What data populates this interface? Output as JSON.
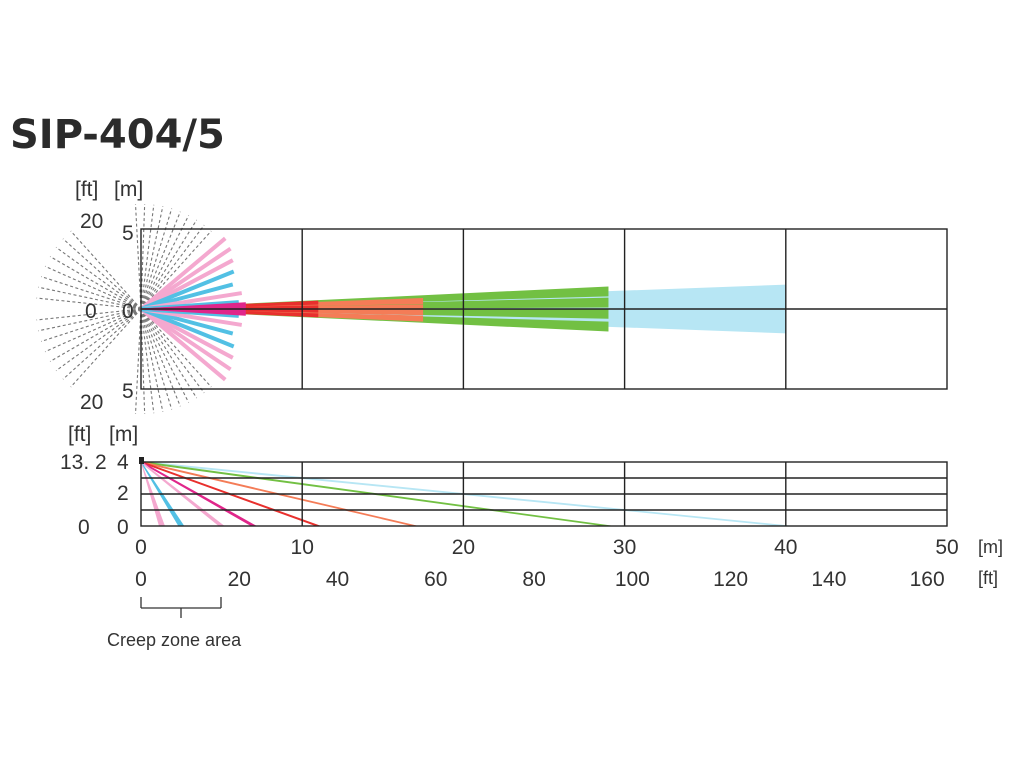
{
  "title": "SIP-404/5",
  "top_view": {
    "ft_unit": "[ft]",
    "m_unit": "[m]",
    "ft_top": "20",
    "m_top": "5",
    "ft_zero": "0",
    "m_zero": "0",
    "ft_bottom": "20",
    "m_bottom": "5"
  },
  "side_view": {
    "ft_unit": "[ft]",
    "m_unit": "[m]",
    "ft_height": "13. 2",
    "m_height": "4",
    "m_mid": "2",
    "ft_zero": "0",
    "m_zero": "0"
  },
  "x_axis_m": {
    "ticks": [
      "0",
      "10",
      "20",
      "30",
      "40",
      "50"
    ],
    "unit": "[m]"
  },
  "x_axis_ft": {
    "ticks": [
      "0",
      "20",
      "40",
      "60",
      "80",
      "100",
      "120",
      "140",
      "160"
    ],
    "unit": "[ft]"
  },
  "creep_zone_label": "Creep zone area",
  "colors": {
    "light_blue": "#b7e6f4",
    "green": "#72c043",
    "orange": "#f47c57",
    "red": "#e8302d",
    "magenta": "#e0268a",
    "pink": "#f4a8cf",
    "cyan": "#52c0e4",
    "grid": "#222222",
    "dashed": "#777777"
  },
  "chart_data": {
    "type": "detection pattern",
    "x_range_m": [
      0,
      50
    ],
    "x_range_ft": [
      0,
      160
    ],
    "top_view": {
      "y_range_m": [
        -5,
        5
      ],
      "long_range_zones": [
        {
          "color": "light_blue",
          "range_m": 40,
          "lateral_m": [
            1.1,
            0.3,
            -0.3,
            -1.1
          ]
        },
        {
          "color": "green",
          "range_m": 29,
          "lateral_m": [
            1.1,
            0.4,
            -0.3,
            -1.1
          ]
        },
        {
          "color": "orange",
          "range_m": 17.5,
          "lateral_m": [
            0.5,
            0.1,
            -0.2,
            -0.6
          ]
        },
        {
          "color": "red",
          "range_m": 11,
          "lateral_m": [
            0.4,
            0.1,
            -0.1,
            -0.4
          ]
        },
        {
          "color": "magenta",
          "range_m": 6.5,
          "lateral_m": [
            0.3,
            0.1,
            -0.1,
            -0.3
          ]
        }
      ]
    },
    "side_view": {
      "height_range_m": [
        0,
        4
      ],
      "mount_height_m": 4,
      "zones_reach_floor_m": [
        {
          "color": "light_blue",
          "floor_m": 40
        },
        {
          "color": "green",
          "floor_m": 29
        },
        {
          "color": "orange",
          "floor_m": 17
        },
        {
          "color": "red",
          "floor_m": 11
        },
        {
          "color": "magenta",
          "floor_m": 7
        },
        {
          "color": "pink",
          "floor_m": 5
        },
        {
          "color": "cyan",
          "floor_m": 2.5
        },
        {
          "color": "pink",
          "floor_m": 1.3
        }
      ]
    },
    "creep_zone_m": [
      0,
      5
    ]
  }
}
